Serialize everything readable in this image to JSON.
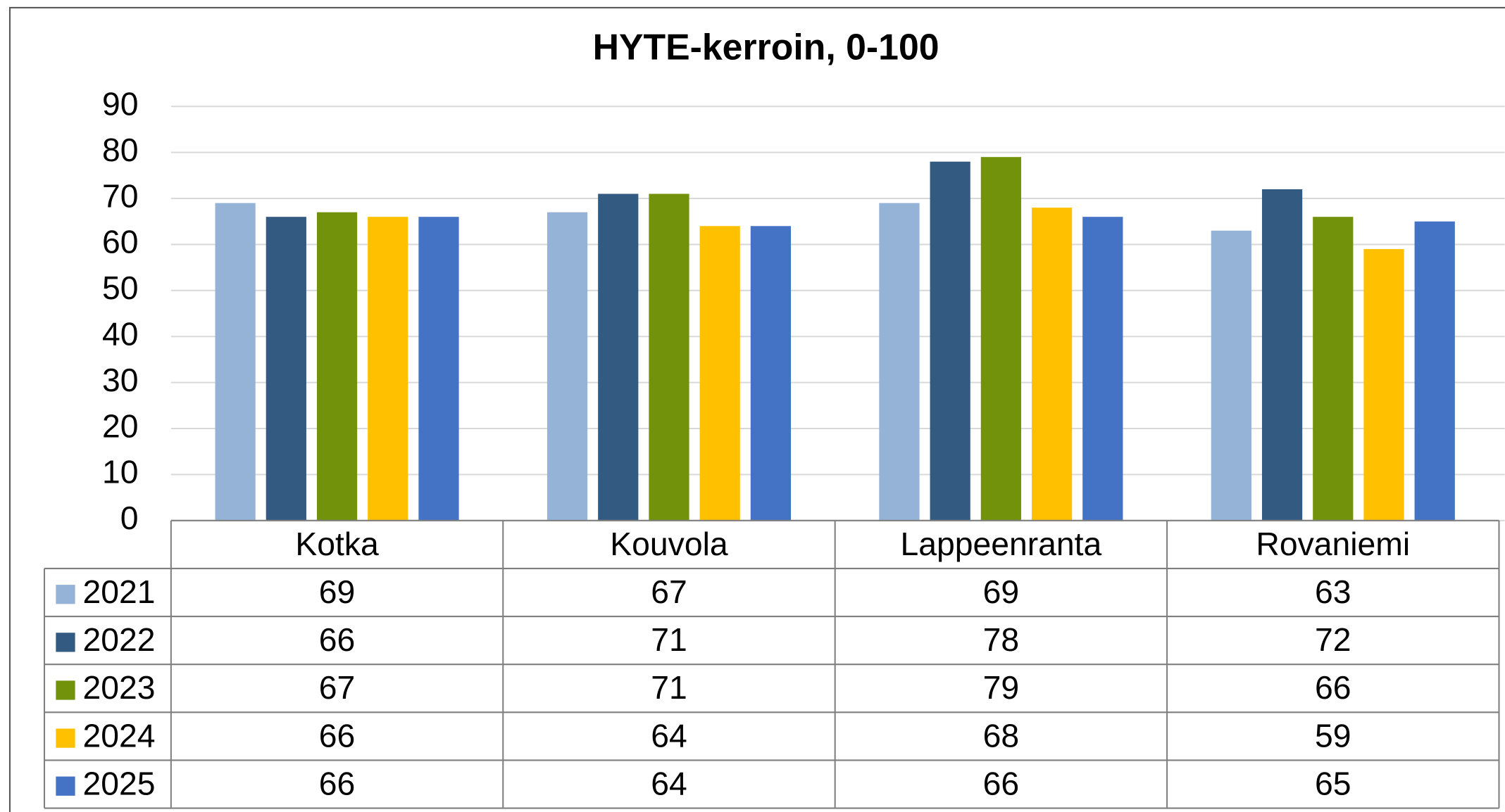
{
  "chart_data": {
    "type": "bar",
    "title": "HYTE-kerroin, 0-100",
    "categories": [
      "Kotka",
      "Kouvola",
      "Lappeenranta",
      "Rovaniemi"
    ],
    "series": [
      {
        "name": "2021",
        "color": "#95b3d7",
        "values": [
          69,
          67,
          69,
          63
        ]
      },
      {
        "name": "2022",
        "color": "#335a80",
        "values": [
          66,
          71,
          78,
          72
        ]
      },
      {
        "name": "2023",
        "color": "#71920a",
        "values": [
          67,
          71,
          79,
          66
        ]
      },
      {
        "name": "2024",
        "color": "#ffc000",
        "values": [
          66,
          64,
          68,
          59
        ]
      },
      {
        "name": "2025",
        "color": "#4472c4",
        "values": [
          66,
          64,
          66,
          65
        ]
      }
    ],
    "ylim": [
      0,
      90
    ],
    "yticks": [
      0,
      10,
      20,
      30,
      40,
      50,
      60,
      70,
      80,
      90
    ],
    "grid": true
  }
}
